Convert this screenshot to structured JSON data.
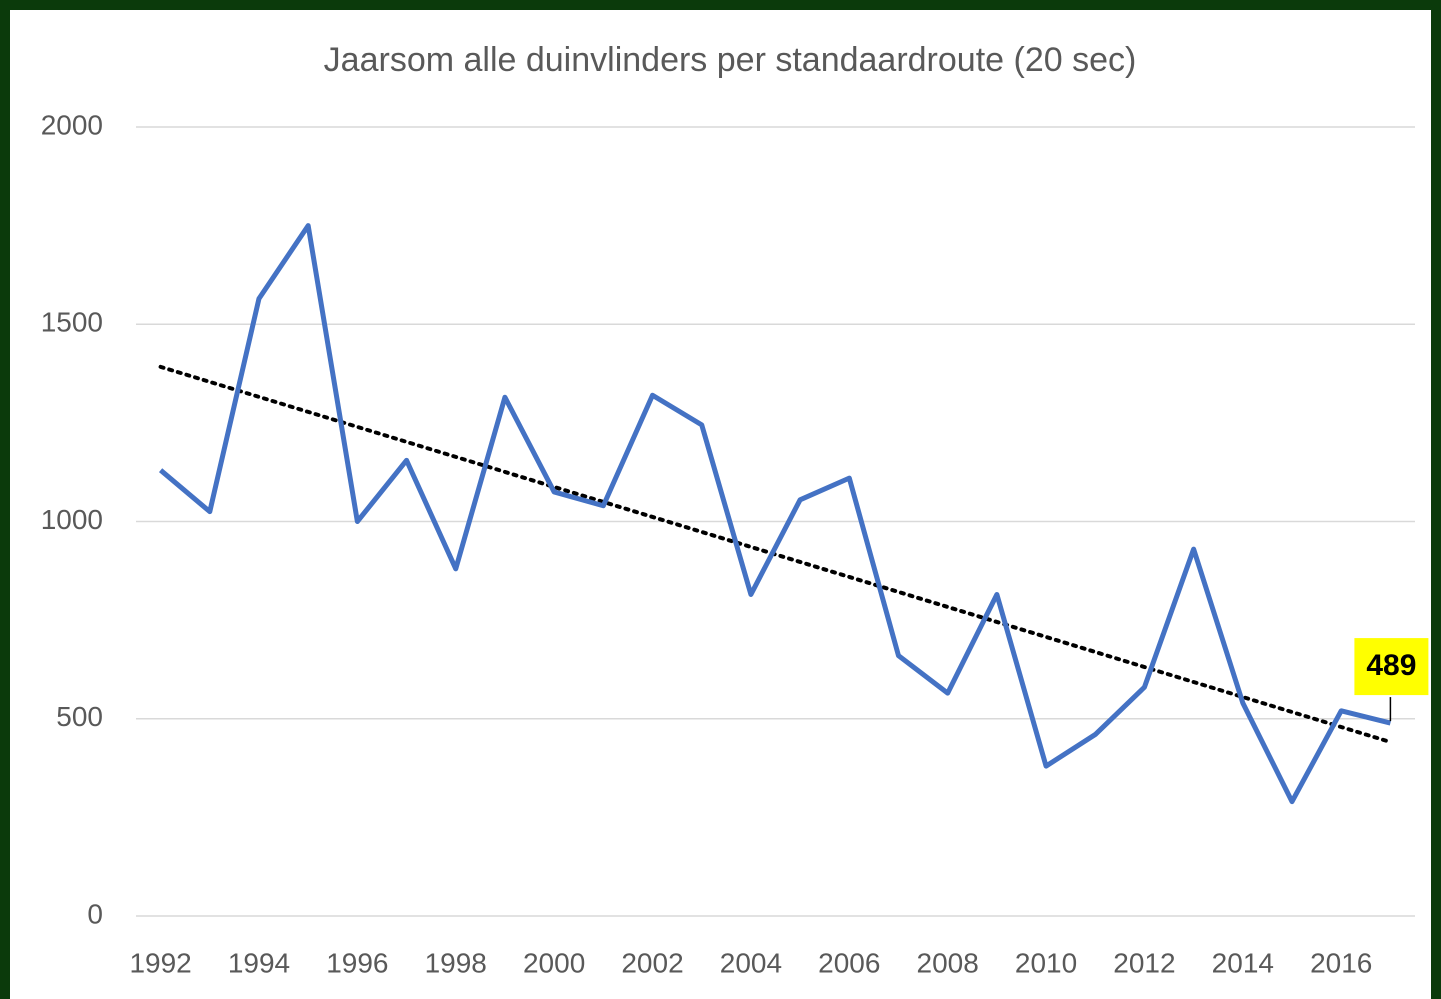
{
  "chart_data": {
    "type": "line",
    "title": "Jaarsom alle duinvlinders per standaardroute  (20 sec)",
    "x": [
      1992,
      1993,
      1994,
      1995,
      1996,
      1997,
      1998,
      1999,
      2000,
      2001,
      2002,
      2003,
      2004,
      2005,
      2006,
      2007,
      2008,
      2009,
      2010,
      2011,
      2012,
      2013,
      2014,
      2015,
      2016,
      2017
    ],
    "series": [
      {
        "color": "#4472c4",
        "values": [
          1130,
          1025,
          1565,
          1750,
          1000,
          1155,
          880,
          1315,
          1075,
          1040,
          1320,
          1245,
          815,
          1055,
          1110,
          660,
          565,
          815,
          380,
          460,
          580,
          930,
          540,
          290,
          520,
          489
        ]
      }
    ],
    "trendline": {
      "color": "#000000",
      "start": 1392,
      "end": 441
    },
    "label_indices": [
      25
    ],
    "label_background": "#ffff00",
    "xlim": [
      1991.5,
      2017.5
    ],
    "xticks": [
      1992,
      1994,
      1996,
      1998,
      2000,
      2002,
      2004,
      2006,
      2008,
      2010,
      2012,
      2014,
      2016
    ],
    "ylim": [
      0,
      2000
    ],
    "yticks": [
      0,
      500,
      1000,
      1500,
      2000
    ],
    "grid": true
  }
}
